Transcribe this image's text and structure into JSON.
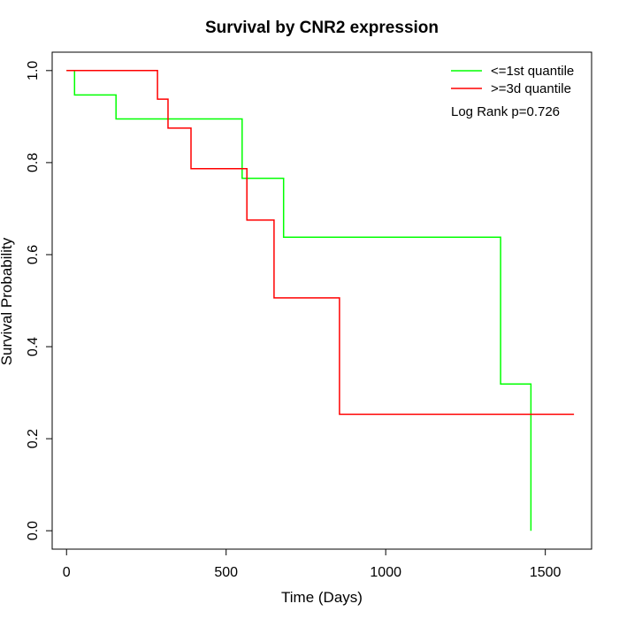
{
  "chart_data": {
    "type": "line",
    "title": "Survival by CNR2 expression",
    "xlabel": "Time (Days)",
    "ylabel": "Survival Probability",
    "xlim": [
      -45,
      1645
    ],
    "ylim": [
      -0.04,
      1.04
    ],
    "x_ticks": [
      0,
      500,
      1000,
      1500
    ],
    "y_ticks": [
      0.0,
      0.2,
      0.4,
      0.6,
      0.8,
      1.0
    ],
    "x_tick_labels": [
      "0",
      "500",
      "1000",
      "1500"
    ],
    "y_tick_labels": [
      "0.0",
      "0.2",
      "0.4",
      "0.6",
      "0.8",
      "1.0"
    ],
    "grid": false,
    "legend_position": "top-right",
    "annotation": "Log Rank p=0.726",
    "series": [
      {
        "name": "<=1st quantile",
        "color": "#00ff00",
        "step_points": [
          [
            0,
            1.0
          ],
          [
            25,
            1.0
          ],
          [
            25,
            0.947
          ],
          [
            155,
            0.947
          ],
          [
            155,
            0.895
          ],
          [
            550,
            0.895
          ],
          [
            550,
            0.766
          ],
          [
            680,
            0.766
          ],
          [
            680,
            0.638
          ],
          [
            1360,
            0.638
          ],
          [
            1360,
            0.319
          ],
          [
            1455,
            0.319
          ],
          [
            1455,
            0.0
          ]
        ]
      },
      {
        "name": ">=3d quantile",
        "color": "#ff0000",
        "step_points": [
          [
            0,
            1.0
          ],
          [
            285,
            1.0
          ],
          [
            285,
            0.938
          ],
          [
            318,
            0.938
          ],
          [
            318,
            0.875
          ],
          [
            390,
            0.875
          ],
          [
            390,
            0.787
          ],
          [
            565,
            0.787
          ],
          [
            565,
            0.675
          ],
          [
            650,
            0.675
          ],
          [
            650,
            0.506
          ],
          [
            855,
            0.506
          ],
          [
            855,
            0.253
          ],
          [
            1590,
            0.253
          ]
        ]
      }
    ]
  }
}
